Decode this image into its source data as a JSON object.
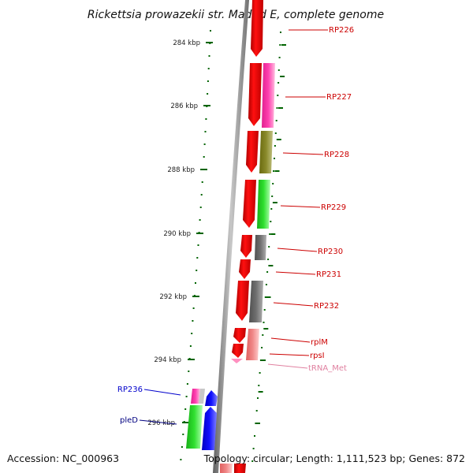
{
  "title": "Rickettsia prowazekii str. Madrid E, complete genome",
  "footer": {
    "accession": "Accession: NC_000963",
    "summary": "Topology: circular; Length: 1,111,523 bp; Genes: 872"
  },
  "ruler_labels": [
    "284 kbp",
    "286 kbp",
    "288 kbp",
    "290 kbp",
    "292 kbp",
    "294 kbp",
    "296 kbp"
  ],
  "gene_labels": {
    "rp226": "RP226",
    "rp227": "RP227",
    "rp228": "RP228",
    "rp229": "RP229",
    "rp230": "RP230",
    "rp231": "RP231",
    "rp232": "RP232",
    "rplm": "rplM",
    "rpsl": "rpsI",
    "trna_met": "tRNA_Met",
    "rp236": "RP236",
    "pled": "pleD"
  },
  "colors": {
    "backbone": "#808080",
    "cds": "#ff0000",
    "magenta": "#ff1f9f",
    "olive": "#808020",
    "green": "#20d020",
    "grey": "#686868",
    "pink": "#f08080",
    "light_pink": "#ff90c0",
    "blue": "#0000ff",
    "tick": "#006400",
    "label_red": "#cc0000",
    "label_blue": "#000080",
    "label_pink": "#e080a0"
  }
}
